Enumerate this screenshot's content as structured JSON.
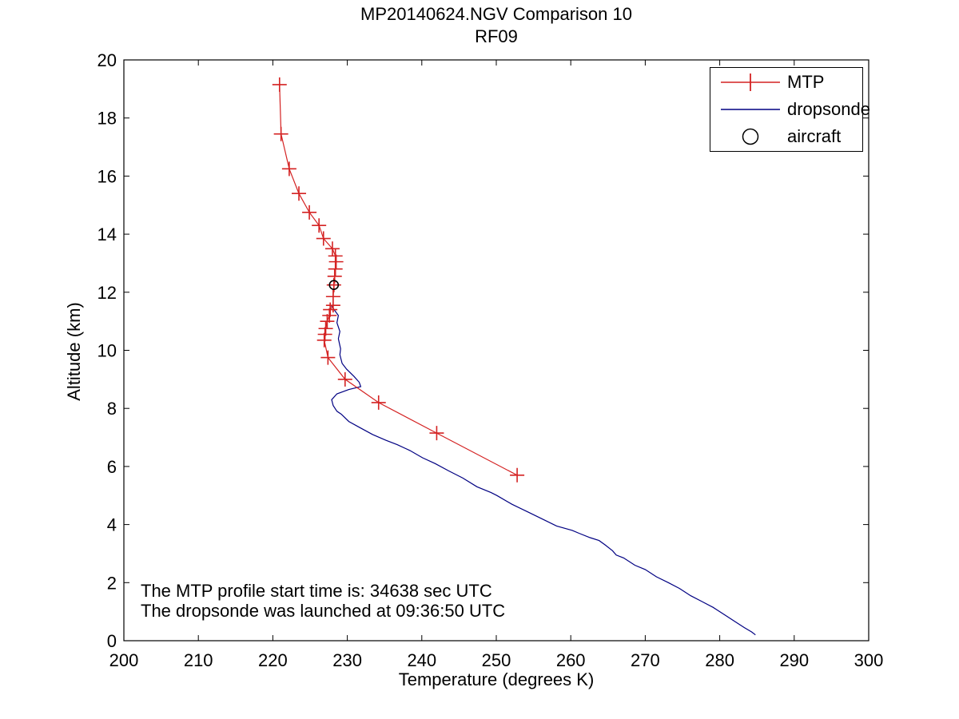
{
  "figure": {
    "title_line1": "MP20140624.NGV Comparison 10",
    "title_line2": "RF09",
    "xlabel": "Temperature (degrees K)",
    "ylabel": "Altitude (km)",
    "annotation_line1": "The MTP profile start time is: 34638 sec UTC",
    "annotation_line2": "The dropsonde was launched at 09:36:50 UTC"
  },
  "legend": {
    "mtp_label": "MTP",
    "dropsonde_label": "dropsonde",
    "aircraft_label": "aircraft"
  },
  "colors": {
    "mtp": "#d42222",
    "dropsonde": "#000082",
    "aircraft": "#000000",
    "axis": "#000000",
    "background": "#ffffff"
  },
  "chart_data": {
    "type": "line",
    "title": "MP20140624.NGV Comparison 10",
    "subtitle": "RF09",
    "xlabel": "Temperature (degrees K)",
    "ylabel": "Altitude (km)",
    "xlim": [
      200,
      300
    ],
    "ylim": [
      0,
      20
    ],
    "xticks": [
      200,
      210,
      220,
      230,
      240,
      250,
      260,
      270,
      280,
      290,
      300
    ],
    "yticks": [
      0,
      2,
      4,
      6,
      8,
      10,
      12,
      14,
      16,
      18,
      20
    ],
    "grid": false,
    "legend_position": "top-right",
    "annotations": [
      "The MTP profile start time is: 34638 sec UTC",
      "The dropsonde was launched at 09:36:50 UTC"
    ],
    "series": [
      {
        "name": "MTP",
        "type": "line",
        "color": "#d42222",
        "marker": "plus",
        "points": [
          [
            220.9,
            19.15
          ],
          [
            221.1,
            17.45
          ],
          [
            222.2,
            16.25
          ],
          [
            223.5,
            15.4
          ],
          [
            224.9,
            14.75
          ],
          [
            226.2,
            14.3
          ],
          [
            226.8,
            13.85
          ],
          [
            228.0,
            13.5
          ],
          [
            228.4,
            13.25
          ],
          [
            228.5,
            13.05
          ],
          [
            228.4,
            12.8
          ],
          [
            228.3,
            12.55
          ],
          [
            228.2,
            12.25
          ],
          [
            228.1,
            11.85
          ],
          [
            228.1,
            11.55
          ],
          [
            227.7,
            11.4
          ],
          [
            227.6,
            11.2
          ],
          [
            227.3,
            11.0
          ],
          [
            227.1,
            10.75
          ],
          [
            227.0,
            10.55
          ],
          [
            226.9,
            10.35
          ],
          [
            227.4,
            9.75
          ],
          [
            229.7,
            9.0
          ],
          [
            234.2,
            8.2
          ],
          [
            242.0,
            7.15
          ],
          [
            252.8,
            5.7
          ]
        ]
      },
      {
        "name": "dropsonde",
        "type": "line",
        "color": "#000082",
        "marker": "none",
        "points": [
          [
            227.8,
            11.55
          ],
          [
            228.8,
            11.2
          ],
          [
            228.6,
            10.95
          ],
          [
            229.0,
            10.65
          ],
          [
            228.8,
            10.4
          ],
          [
            229.1,
            10.05
          ],
          [
            229.0,
            9.85
          ],
          [
            229.3,
            9.55
          ],
          [
            229.9,
            9.35
          ],
          [
            230.9,
            9.1
          ],
          [
            231.6,
            8.9
          ],
          [
            231.8,
            8.75
          ],
          [
            230.2,
            8.65
          ],
          [
            228.6,
            8.5
          ],
          [
            227.9,
            8.3
          ],
          [
            228.1,
            8.1
          ],
          [
            228.6,
            7.9
          ],
          [
            229.2,
            7.8
          ],
          [
            230.2,
            7.55
          ],
          [
            231.6,
            7.35
          ],
          [
            233.4,
            7.1
          ],
          [
            235.2,
            6.9
          ],
          [
            236.7,
            6.75
          ],
          [
            238.4,
            6.55
          ],
          [
            240.1,
            6.3
          ],
          [
            241.8,
            6.1
          ],
          [
            243.6,
            5.85
          ],
          [
            245.5,
            5.6
          ],
          [
            247.4,
            5.3
          ],
          [
            249.3,
            5.1
          ],
          [
            250.1,
            5.0
          ],
          [
            252.1,
            4.7
          ],
          [
            254.1,
            4.45
          ],
          [
            256.1,
            4.2
          ],
          [
            258.1,
            3.95
          ],
          [
            260.2,
            3.8
          ],
          [
            261.1,
            3.7
          ],
          [
            262.6,
            3.55
          ],
          [
            263.8,
            3.45
          ],
          [
            264.6,
            3.3
          ],
          [
            265.6,
            3.1
          ],
          [
            266.1,
            2.95
          ],
          [
            267.1,
            2.85
          ],
          [
            268.6,
            2.6
          ],
          [
            270.0,
            2.45
          ],
          [
            271.5,
            2.2
          ],
          [
            273.1,
            2.0
          ],
          [
            274.6,
            1.8
          ],
          [
            276.1,
            1.55
          ],
          [
            277.6,
            1.35
          ],
          [
            279.1,
            1.15
          ],
          [
            280.6,
            0.9
          ],
          [
            282.1,
            0.65
          ],
          [
            283.3,
            0.45
          ],
          [
            284.3,
            0.3
          ],
          [
            284.8,
            0.2
          ]
        ]
      },
      {
        "name": "aircraft",
        "type": "scatter",
        "color": "#000000",
        "marker": "open-circle",
        "points": [
          [
            228.2,
            12.25
          ]
        ]
      }
    ]
  }
}
